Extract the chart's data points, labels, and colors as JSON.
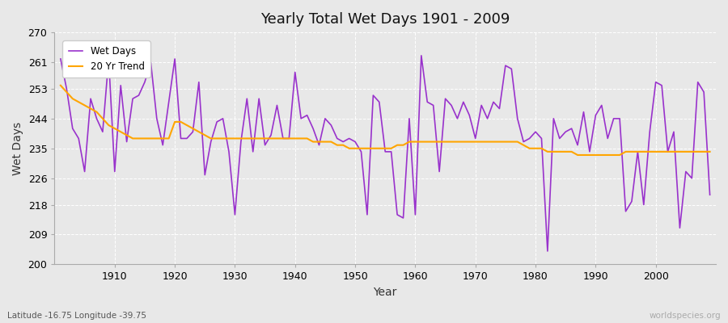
{
  "title": "Yearly Total Wet Days 1901 - 2009",
  "xlabel": "Year",
  "ylabel": "Wet Days",
  "subtitle": "Latitude -16.75 Longitude -39.75",
  "watermark": "worldspecies.org",
  "ylim": [
    200,
    270
  ],
  "yticks": [
    200,
    209,
    218,
    226,
    235,
    244,
    253,
    261,
    270
  ],
  "years": [
    1901,
    1902,
    1903,
    1904,
    1905,
    1906,
    1907,
    1908,
    1909,
    1910,
    1911,
    1912,
    1913,
    1914,
    1915,
    1916,
    1917,
    1918,
    1919,
    1920,
    1921,
    1922,
    1923,
    1924,
    1925,
    1926,
    1927,
    1928,
    1929,
    1930,
    1931,
    1932,
    1933,
    1934,
    1935,
    1936,
    1937,
    1938,
    1939,
    1940,
    1941,
    1942,
    1943,
    1944,
    1945,
    1946,
    1947,
    1948,
    1949,
    1950,
    1951,
    1952,
    1953,
    1954,
    1955,
    1956,
    1957,
    1958,
    1959,
    1960,
    1961,
    1962,
    1963,
    1964,
    1965,
    1966,
    1967,
    1968,
    1969,
    1970,
    1971,
    1972,
    1973,
    1974,
    1975,
    1976,
    1977,
    1978,
    1979,
    1980,
    1981,
    1982,
    1983,
    1984,
    1985,
    1986,
    1987,
    1988,
    1989,
    1990,
    1991,
    1992,
    1993,
    1994,
    1995,
    1996,
    1997,
    1998,
    1999,
    2000,
    2001,
    2002,
    2003,
    2004,
    2005,
    2006,
    2007,
    2008,
    2009
  ],
  "wet_days": [
    262,
    253,
    241,
    238,
    228,
    250,
    244,
    240,
    262,
    228,
    254,
    237,
    250,
    251,
    255,
    261,
    244,
    236,
    249,
    262,
    238,
    238,
    240,
    255,
    227,
    237,
    243,
    244,
    234,
    215,
    237,
    250,
    234,
    250,
    236,
    239,
    248,
    238,
    238,
    258,
    244,
    245,
    241,
    236,
    244,
    242,
    238,
    237,
    238,
    237,
    234,
    215,
    251,
    249,
    234,
    234,
    215,
    214,
    244,
    215,
    263,
    249,
    248,
    228,
    250,
    248,
    244,
    249,
    245,
    238,
    248,
    244,
    249,
    247,
    260,
    259,
    244,
    237,
    238,
    240,
    238,
    204,
    244,
    238,
    240,
    241,
    236,
    246,
    234,
    245,
    248,
    238,
    244,
    244,
    216,
    219,
    234,
    218,
    240,
    255,
    254,
    234,
    240,
    211,
    228,
    226,
    255,
    252,
    221
  ],
  "trend": [
    254,
    252,
    250,
    249,
    248,
    247,
    246,
    244,
    242,
    241,
    240,
    239,
    238,
    238,
    238,
    238,
    238,
    238,
    238,
    243,
    243,
    242,
    241,
    240,
    239,
    238,
    238,
    238,
    238,
    238,
    238,
    238,
    238,
    238,
    238,
    238,
    238,
    238,
    238,
    238,
    238,
    238,
    237,
    237,
    237,
    237,
    236,
    236,
    235,
    235,
    235,
    235,
    235,
    235,
    235,
    235,
    236,
    236,
    237,
    237,
    237,
    237,
    237,
    237,
    237,
    237,
    237,
    237,
    237,
    237,
    237,
    237,
    237,
    237,
    237,
    237,
    237,
    236,
    235,
    235,
    235,
    234,
    234,
    234,
    234,
    234,
    233,
    233,
    233,
    233,
    233,
    233,
    233,
    233,
    234,
    234,
    234,
    234,
    234,
    234,
    234,
    234,
    234,
    234,
    234,
    234,
    234,
    234,
    234
  ],
  "wet_days_color": "#9932CC",
  "trend_color": "#FFA500",
  "bg_color": "#e8e8e8",
  "plot_bg_color": "#e8e8e8",
  "grid_color": "#ffffff",
  "legend_wet_label": "Wet Days",
  "legend_trend_label": "20 Yr Trend"
}
